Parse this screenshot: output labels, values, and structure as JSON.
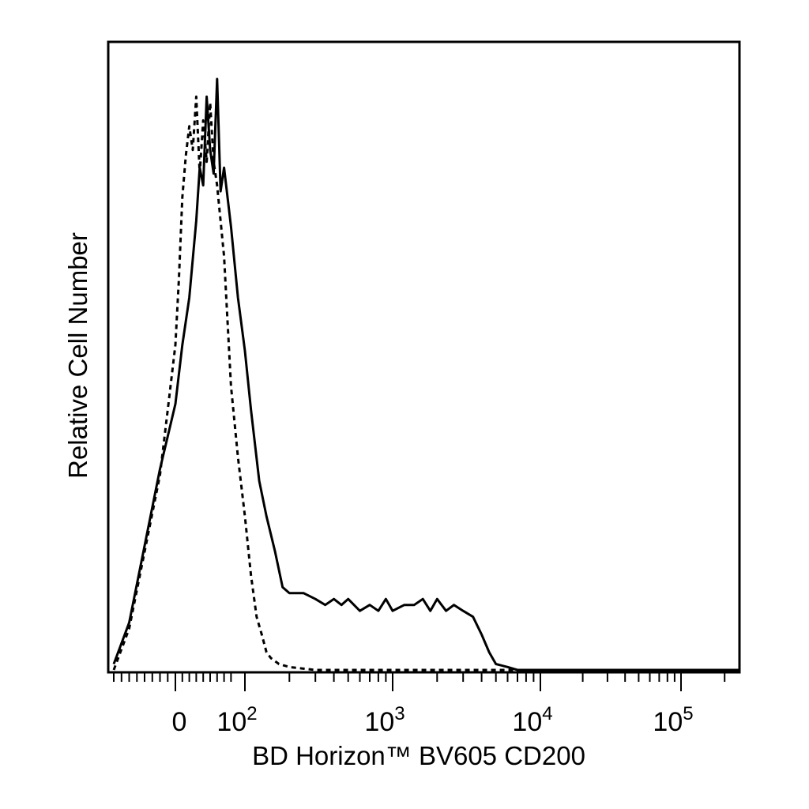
{
  "chart_data": {
    "type": "line",
    "title": "",
    "xlabel": "BD Horizon™ BV605 CD200",
    "ylabel": "Relative Cell Number",
    "x_scale": "biexponential",
    "xlim": [
      -80,
      250000
    ],
    "ylim": [
      0,
      100
    ],
    "grid": false,
    "legend": "none",
    "x_tick_labels": [
      {
        "value": 0,
        "base": "0",
        "exp": ""
      },
      {
        "value": 100,
        "base": "10",
        "exp": "2"
      },
      {
        "value": 1000,
        "base": "10",
        "exp": "3"
      },
      {
        "value": 10000,
        "base": "10",
        "exp": "4"
      },
      {
        "value": 100000,
        "base": "10",
        "exp": "5"
      }
    ],
    "series": [
      {
        "style": "solid",
        "color": "#000000",
        "x": [
          -80,
          -60,
          -40,
          -20,
          0,
          10,
          20,
          30,
          35,
          40,
          45,
          50,
          55,
          60,
          65,
          70,
          80,
          90,
          100,
          110,
          125,
          140,
          160,
          180,
          200,
          220,
          250,
          300,
          350,
          400,
          450,
          500,
          600,
          700,
          800,
          900,
          1000,
          1200,
          1400,
          1600,
          1800,
          2000,
          2300,
          2600,
          3000,
          3500,
          4000,
          4500,
          5000,
          6000,
          7000,
          8000,
          10000,
          100000,
          250000
        ],
        "y": [
          1,
          8,
          21,
          34,
          45,
          55,
          63,
          76,
          85,
          82,
          97,
          88,
          84,
          100,
          81,
          85,
          75,
          63,
          54,
          44,
          32,
          26,
          20,
          14,
          13,
          13,
          13,
          12,
          11,
          12,
          11,
          12,
          10,
          11,
          10,
          12,
          10,
          11,
          11,
          12,
          10,
          12,
          10,
          11,
          10,
          9,
          6,
          3,
          1,
          0.5,
          0,
          0,
          0,
          0,
          0
        ]
      },
      {
        "style": "dashed",
        "color": "#000000",
        "x": [
          -80,
          -60,
          -40,
          -20,
          -10,
          0,
          5,
          10,
          15,
          20,
          25,
          30,
          35,
          40,
          45,
          50,
          55,
          60,
          70,
          80,
          90,
          100,
          110,
          120,
          130,
          140,
          150,
          170,
          200,
          300,
          1000,
          250000
        ],
        "y": [
          0,
          7,
          20,
          33,
          44,
          55,
          66,
          80,
          87,
          92,
          88,
          97,
          84,
          93,
          86,
          96,
          86,
          82,
          70,
          48,
          36,
          26,
          16,
          9,
          6,
          3,
          2,
          1,
          0.5,
          0,
          0,
          0
        ]
      }
    ]
  }
}
